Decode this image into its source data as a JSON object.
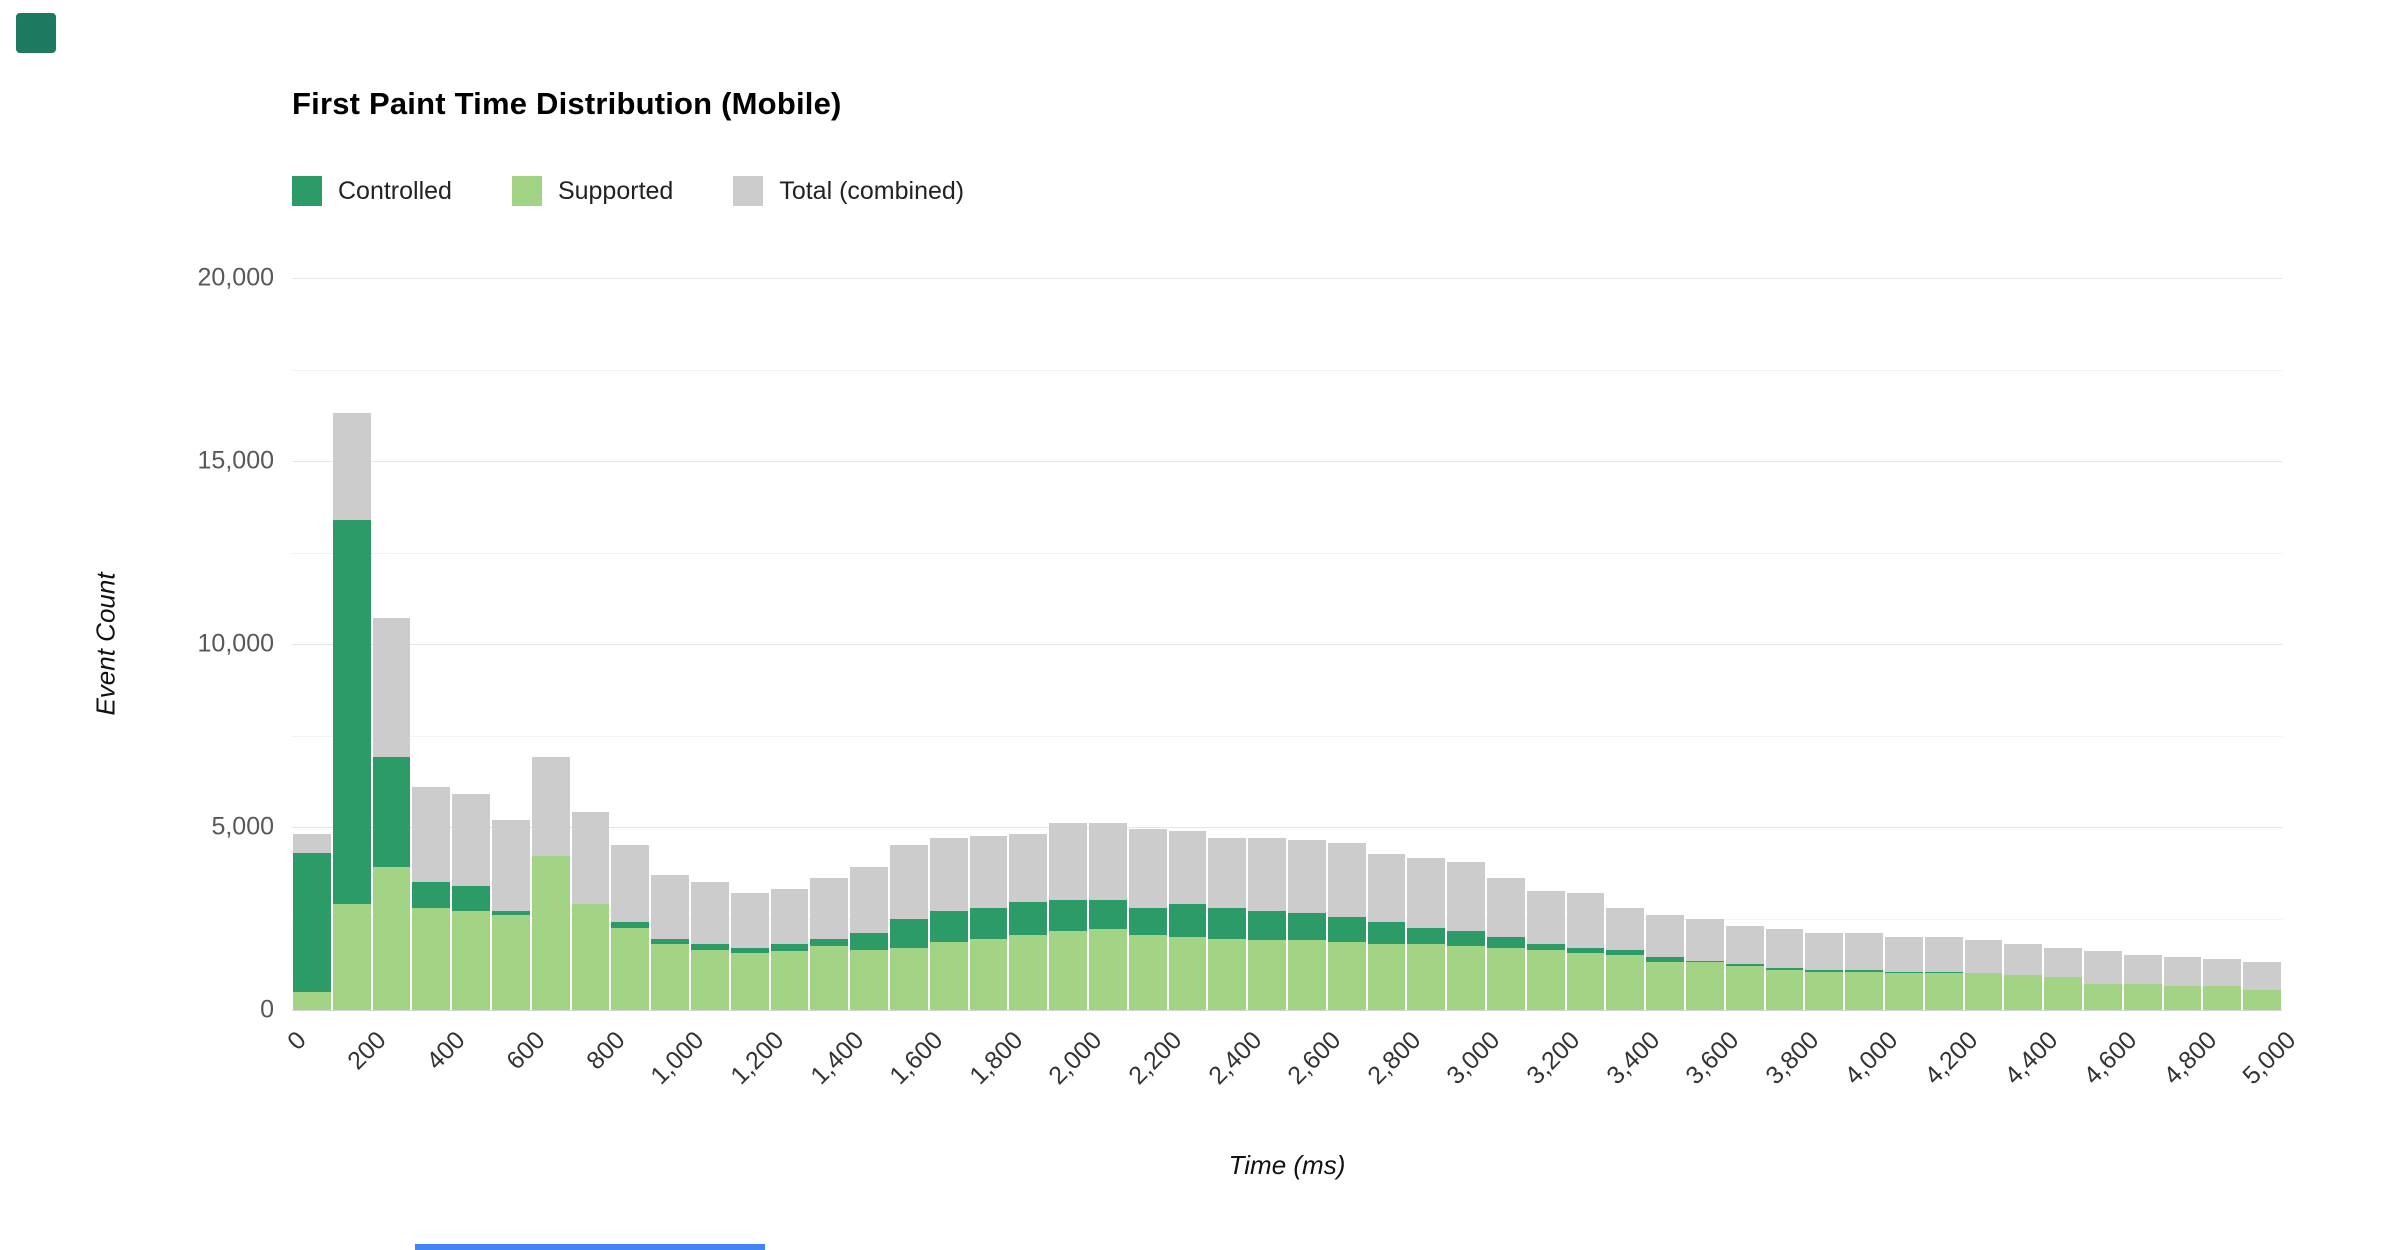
{
  "page": {
    "background": "#ffffff"
  },
  "corner_marker": {
    "color": "#1e7a5f"
  },
  "bottom_accent": {
    "color": "#4285f4"
  },
  "chart_data": {
    "type": "bar",
    "stacked": true,
    "title": "First Paint Time Distribution (Mobile)",
    "xlabel": "Time (ms)",
    "ylabel": "Event Count",
    "xlim": [
      0,
      5000
    ],
    "ylim": [
      0,
      20000
    ],
    "bin_width_ms": 100,
    "grid": true,
    "legend_position": "top-left",
    "legend": [
      {
        "label": "Controlled",
        "color": "#2d9b68"
      },
      {
        "label": "Supported",
        "color": "#a3d384"
      },
      {
        "label": "Total (combined)",
        "color": "#cccccc"
      }
    ],
    "y_ticks": [
      {
        "value": 0,
        "label": "0"
      },
      {
        "value": 5000,
        "label": "5,000"
      },
      {
        "value": 10000,
        "label": "10,000"
      },
      {
        "value": 15000,
        "label": "15,000"
      },
      {
        "value": 20000,
        "label": "20,000"
      }
    ],
    "y_minor": [
      2500,
      7500,
      12500,
      17500
    ],
    "x_ticks": [
      {
        "value": 0,
        "label": "0"
      },
      {
        "value": 200,
        "label": "200"
      },
      {
        "value": 400,
        "label": "400"
      },
      {
        "value": 600,
        "label": "600"
      },
      {
        "value": 800,
        "label": "800"
      },
      {
        "value": 1000,
        "label": "1,000"
      },
      {
        "value": 1200,
        "label": "1,200"
      },
      {
        "value": 1400,
        "label": "1,400"
      },
      {
        "value": 1600,
        "label": "1,600"
      },
      {
        "value": 1800,
        "label": "1,800"
      },
      {
        "value": 2000,
        "label": "2,000"
      },
      {
        "value": 2200,
        "label": "2,200"
      },
      {
        "value": 2400,
        "label": "2,400"
      },
      {
        "value": 2600,
        "label": "2,600"
      },
      {
        "value": 2800,
        "label": "2,800"
      },
      {
        "value": 3000,
        "label": "3,000"
      },
      {
        "value": 3200,
        "label": "3,200"
      },
      {
        "value": 3400,
        "label": "3,400"
      },
      {
        "value": 3600,
        "label": "3,600"
      },
      {
        "value": 3800,
        "label": "3,800"
      },
      {
        "value": 4000,
        "label": "4,000"
      },
      {
        "value": 4200,
        "label": "4,200"
      },
      {
        "value": 4400,
        "label": "4,400"
      },
      {
        "value": 4600,
        "label": "4,600"
      },
      {
        "value": 4800,
        "label": "4,800"
      },
      {
        "value": 5000,
        "label": "5,000"
      }
    ],
    "series_note": "Stacked bars: Supported (bottom), Controlled (middle); gray segment above = Total (combined) minus the two series",
    "bins": [
      {
        "t": 0,
        "supported": 500,
        "controlled": 3800,
        "total": 4800
      },
      {
        "t": 100,
        "supported": 2900,
        "controlled": 10500,
        "total": 16300
      },
      {
        "t": 200,
        "supported": 3900,
        "controlled": 3000,
        "total": 10700
      },
      {
        "t": 300,
        "supported": 2800,
        "controlled": 700,
        "total": 6100
      },
      {
        "t": 400,
        "supported": 2700,
        "controlled": 700,
        "total": 5900
      },
      {
        "t": 500,
        "supported": 2600,
        "controlled": 100,
        "total": 5200
      },
      {
        "t": 600,
        "supported": 4200,
        "controlled": 0,
        "total": 6900
      },
      {
        "t": 700,
        "supported": 2900,
        "controlled": 0,
        "total": 5400
      },
      {
        "t": 800,
        "supported": 2250,
        "controlled": 150,
        "total": 4500
      },
      {
        "t": 900,
        "supported": 1800,
        "controlled": 150,
        "total": 3700
      },
      {
        "t": 1000,
        "supported": 1650,
        "controlled": 150,
        "total": 3500
      },
      {
        "t": 1100,
        "supported": 1550,
        "controlled": 150,
        "total": 3200
      },
      {
        "t": 1200,
        "supported": 1600,
        "controlled": 200,
        "total": 3300
      },
      {
        "t": 1300,
        "supported": 1750,
        "controlled": 200,
        "total": 3600
      },
      {
        "t": 1400,
        "supported": 1650,
        "controlled": 450,
        "total": 3900
      },
      {
        "t": 1500,
        "supported": 1700,
        "controlled": 800,
        "total": 4500
      },
      {
        "t": 1600,
        "supported": 1850,
        "controlled": 850,
        "total": 4700
      },
      {
        "t": 1700,
        "supported": 1950,
        "controlled": 850,
        "total": 4750
      },
      {
        "t": 1800,
        "supported": 2050,
        "controlled": 900,
        "total": 4800
      },
      {
        "t": 1900,
        "supported": 2150,
        "controlled": 850,
        "total": 5100
      },
      {
        "t": 2000,
        "supported": 2200,
        "controlled": 800,
        "total": 5100
      },
      {
        "t": 2100,
        "supported": 2050,
        "controlled": 750,
        "total": 4950
      },
      {
        "t": 2200,
        "supported": 2000,
        "controlled": 900,
        "total": 4900
      },
      {
        "t": 2300,
        "supported": 1950,
        "controlled": 850,
        "total": 4700
      },
      {
        "t": 2400,
        "supported": 1900,
        "controlled": 800,
        "total": 4700
      },
      {
        "t": 2500,
        "supported": 1900,
        "controlled": 750,
        "total": 4650
      },
      {
        "t": 2600,
        "supported": 1850,
        "controlled": 700,
        "total": 4550
      },
      {
        "t": 2700,
        "supported": 1800,
        "controlled": 600,
        "total": 4250
      },
      {
        "t": 2800,
        "supported": 1800,
        "controlled": 450,
        "total": 4150
      },
      {
        "t": 2900,
        "supported": 1750,
        "controlled": 400,
        "total": 4050
      },
      {
        "t": 3000,
        "supported": 1700,
        "controlled": 300,
        "total": 3600
      },
      {
        "t": 3100,
        "supported": 1650,
        "controlled": 150,
        "total": 3250
      },
      {
        "t": 3200,
        "supported": 1550,
        "controlled": 150,
        "total": 3200
      },
      {
        "t": 3300,
        "supported": 1500,
        "controlled": 150,
        "total": 2800
      },
      {
        "t": 3400,
        "supported": 1300,
        "controlled": 150,
        "total": 2600
      },
      {
        "t": 3500,
        "supported": 1300,
        "controlled": 50,
        "total": 2500
      },
      {
        "t": 3600,
        "supported": 1200,
        "controlled": 50,
        "total": 2300
      },
      {
        "t": 3700,
        "supported": 1100,
        "controlled": 50,
        "total": 2200
      },
      {
        "t": 3800,
        "supported": 1050,
        "controlled": 50,
        "total": 2100
      },
      {
        "t": 3900,
        "supported": 1050,
        "controlled": 50,
        "total": 2100
      },
      {
        "t": 4000,
        "supported": 1000,
        "controlled": 50,
        "total": 2000
      },
      {
        "t": 4100,
        "supported": 1000,
        "controlled": 50,
        "total": 2000
      },
      {
        "t": 4200,
        "supported": 1000,
        "controlled": 0,
        "total": 1900
      },
      {
        "t": 4300,
        "supported": 950,
        "controlled": 0,
        "total": 1800
      },
      {
        "t": 4400,
        "supported": 900,
        "controlled": 0,
        "total": 1700
      },
      {
        "t": 4500,
        "supported": 700,
        "controlled": 0,
        "total": 1600
      },
      {
        "t": 4600,
        "supported": 700,
        "controlled": 0,
        "total": 1500
      },
      {
        "t": 4700,
        "supported": 650,
        "controlled": 0,
        "total": 1450
      },
      {
        "t": 4800,
        "supported": 650,
        "controlled": 0,
        "total": 1400
      },
      {
        "t": 4900,
        "supported": 550,
        "controlled": 0,
        "total": 1300
      }
    ]
  }
}
